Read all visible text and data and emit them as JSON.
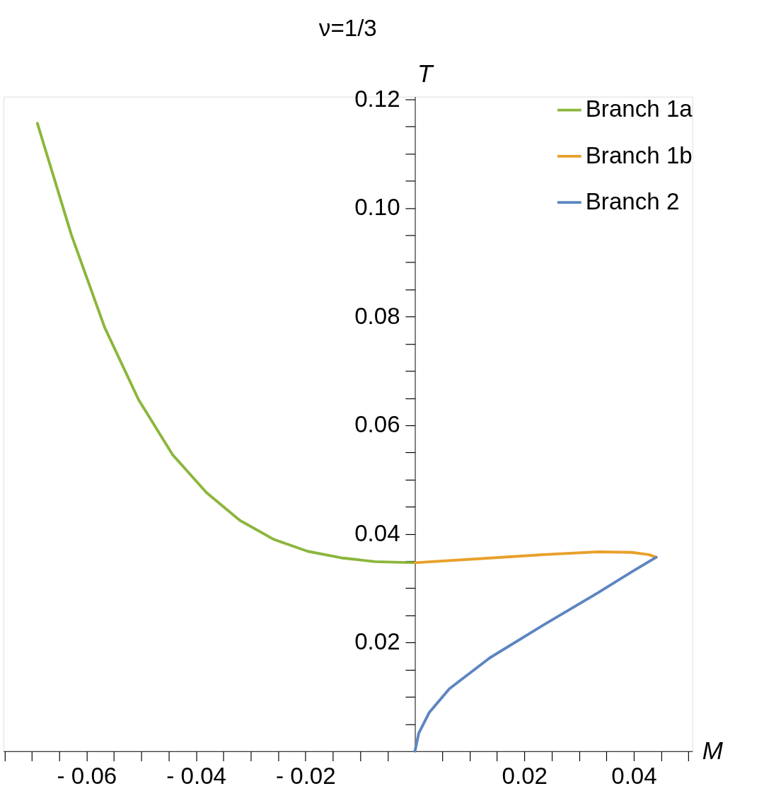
{
  "chart_data": {
    "type": "line",
    "title": "ν=1/3",
    "xlabel": "M",
    "ylabel": "T",
    "xlim": [
      -0.0752,
      0.0507
    ],
    "ylim": [
      0,
      0.1205
    ],
    "xticks": [
      {
        "value": -0.075,
        "label": null
      },
      {
        "value": -0.07,
        "label": null
      },
      {
        "value": -0.065,
        "label": null
      },
      {
        "value": -0.06,
        "label": "- 0.06"
      },
      {
        "value": -0.055,
        "label": null
      },
      {
        "value": -0.05,
        "label": null
      },
      {
        "value": -0.045,
        "label": null
      },
      {
        "value": -0.04,
        "label": "- 0.04"
      },
      {
        "value": -0.035,
        "label": null
      },
      {
        "value": -0.03,
        "label": null
      },
      {
        "value": -0.025,
        "label": null
      },
      {
        "value": -0.02,
        "label": "- 0.02"
      },
      {
        "value": -0.015,
        "label": null
      },
      {
        "value": -0.01,
        "label": null
      },
      {
        "value": -0.005,
        "label": null
      },
      {
        "value": 0.005,
        "label": null
      },
      {
        "value": 0.01,
        "label": null
      },
      {
        "value": 0.015,
        "label": null
      },
      0.02,
      {
        "value": 0.025,
        "label": null
      },
      {
        "value": 0.03,
        "label": null
      },
      {
        "value": 0.035,
        "label": null
      },
      0.04,
      {
        "value": 0.045,
        "label": null
      },
      {
        "value": 0.05,
        "label": null
      }
    ],
    "yticks": [
      {
        "value": 0.005,
        "label": null
      },
      {
        "value": 0.01,
        "label": null
      },
      {
        "value": 0.015,
        "label": null
      },
      {
        "value": 0.02,
        "label": "0.02"
      },
      {
        "value": 0.025,
        "label": null
      },
      {
        "value": 0.03,
        "label": null
      },
      {
        "value": 0.035,
        "label": null
      },
      {
        "value": 0.04,
        "label": "0.04"
      },
      {
        "value": 0.045,
        "label": null
      },
      {
        "value": 0.05,
        "label": null
      },
      {
        "value": 0.055,
        "label": null
      },
      {
        "value": 0.06,
        "label": "0.06"
      },
      {
        "value": 0.065,
        "label": null
      },
      {
        "value": 0.07,
        "label": null
      },
      {
        "value": 0.075,
        "label": null
      },
      {
        "value": 0.08,
        "label": "0.08"
      },
      {
        "value": 0.085,
        "label": null
      },
      {
        "value": 0.09,
        "label": null
      },
      {
        "value": 0.095,
        "label": null
      },
      {
        "value": 0.1,
        "label": "0.10"
      },
      {
        "value": 0.105,
        "label": null
      },
      {
        "value": 0.11,
        "label": null
      },
      {
        "value": 0.115,
        "label": null
      },
      {
        "value": 0.12,
        "label": "0.12"
      }
    ],
    "grid": false,
    "legend": "top right",
    "line_style": "solid",
    "marker": "none",
    "series": [
      {
        "name": "Branch 1a",
        "color": "#8cb63c",
        "x": [
          -0.069,
          -0.0628,
          -0.0567,
          -0.0505,
          -0.0443,
          -0.0381,
          -0.032,
          -0.0258,
          -0.0196,
          -0.0135,
          -0.0073,
          0
        ],
        "values": [
          0.1156,
          0.0951,
          0.078,
          0.0647,
          0.0546,
          0.0476,
          0.0425,
          0.039,
          0.0368,
          0.0356,
          0.0349,
          0.0347
        ]
      },
      {
        "name": "Branch 1b",
        "color": "#e8a02a",
        "x": [
          0,
          0.0112,
          0.0236,
          0.0335,
          0.0396,
          0.0427,
          0.0441
        ],
        "values": [
          0.0347,
          0.0354,
          0.0362,
          0.0367,
          0.0366,
          0.0362,
          0.0357
        ]
      },
      {
        "name": "Branch 2",
        "color": "#5d85c0",
        "x": [
          0.0441,
          0.0396,
          0.0335,
          0.0236,
          0.0137,
          0.0063,
          0.0026,
          0.0007,
          0
        ],
        "values": [
          0.0357,
          0.033,
          0.0292,
          0.0233,
          0.0172,
          0.0115,
          0.0071,
          0.0033,
          0
        ]
      }
    ]
  }
}
